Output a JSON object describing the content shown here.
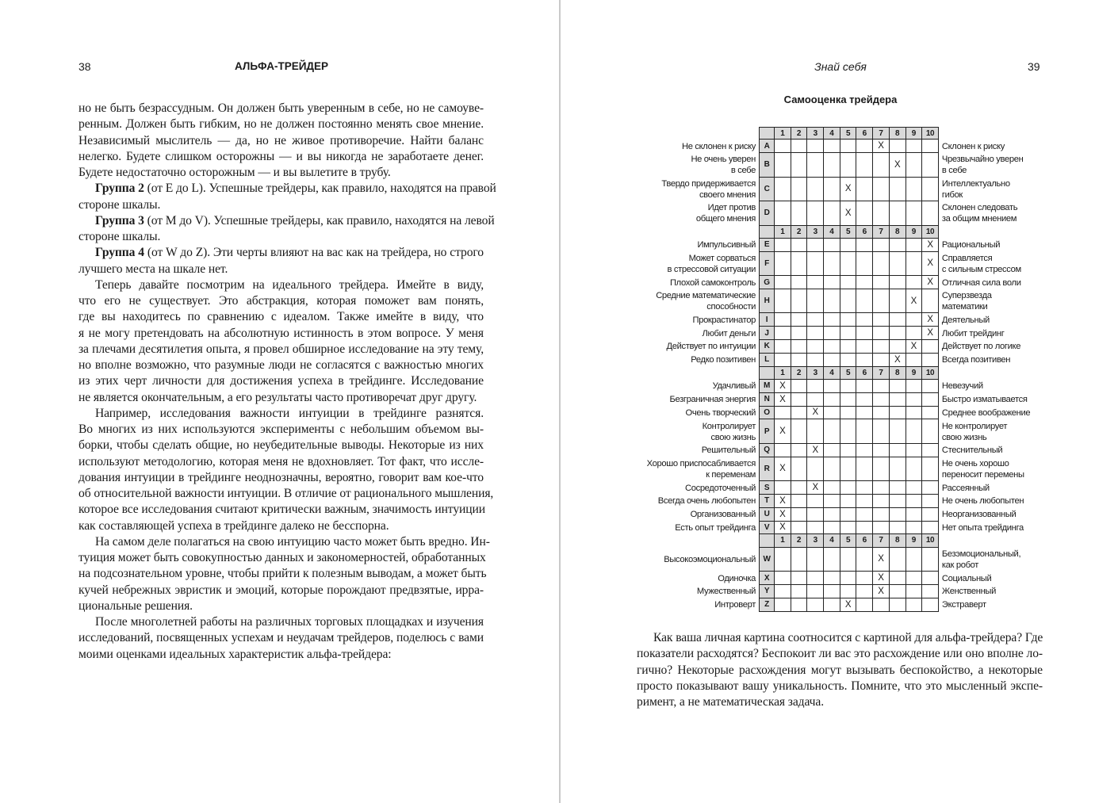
{
  "left_page": {
    "page_number": "38",
    "running_head": "АЛЬФА-ТРЕЙДЕР",
    "paragraphs": [
      {
        "indent": false,
        "lines": [
          "но не быть безрассудным. Он должен быть уверенным в себе, но не самоуве-",
          "ренным. Должен быть гибким, но не должен постоянно менять свое мнение.",
          "Независимый мыслитель — да, но не живое противоречие. Найти баланс",
          "нелегко. Будете слишком осторожны — и вы никогда не заработаете денег.",
          "Будете недостаточно осторожным — и вы вылетите в трубу."
        ]
      },
      {
        "indent": true,
        "bold_lead": "Группа 2",
        "lines": [
          " (от E до L). Успешные трейдеры, как правило, находятся на правой",
          "стороне шкалы."
        ]
      },
      {
        "indent": true,
        "bold_lead": "Группа 3",
        "lines": [
          " (от M до V). Успешные трейдеры, как правило, находятся на левой",
          "стороне шкалы."
        ]
      },
      {
        "indent": true,
        "bold_lead": "Группа 4",
        "lines": [
          " (от W до Z). Эти черты влияют на вас как на трейдера, но строго",
          "лучшего места на шкале нет."
        ]
      },
      {
        "indent": true,
        "lines": [
          "Теперь давайте посмотрим на идеального трейдера. Имейте в виду,",
          "что его не существует. Это абстракция, которая поможет вам понять,",
          "где вы находитесь по сравнению с идеалом. Также имейте в виду, что",
          "я не могу претендовать на абсолютную истинность в этом вопросе. У меня",
          "за плечами десятилетия опыта, я провел обширное исследование на эту тему,",
          "но вполне возможно, что разумные люди не согласятся с важностью многих",
          "из этих черт личности для достижения успеха в трейдинге. Исследование",
          "не является окончательным, а его результаты часто противоречат друг другу."
        ]
      },
      {
        "indent": true,
        "lines": [
          "Например, исследования важности интуиции в трейдинге разнятся.",
          "Во многих из них используются эксперименты с небольшим объемом вы-",
          "борки, чтобы сделать общие, но неубедительные выводы. Некоторые из них",
          "используют методологию, которая меня не вдохновляет. Тот факт, что иссле-",
          "дования интуиции в трейдинге неоднозначны, вероятно, говорит вам кое-что",
          "об относительной важности интуиции. В отличие от рационального мышления,",
          "которое все исследования считают критически важным, значимость интуиции",
          "как составляющей успеха в трейдинге далеко не бесспорна."
        ]
      },
      {
        "indent": true,
        "lines": [
          "На самом деле полагаться на свою интуицию часто может быть вредно. Ин-",
          "туиция может быть совокупностью данных и закономерностей, обработанных",
          "на подсознательном уровне, чтобы прийти к полезным выводам, а может быть",
          "кучей небрежных эвристик и эмоций, которые порождают предвзятые, ирра-",
          "циональные решения."
        ]
      },
      {
        "indent": true,
        "lines": [
          "После многолетней работы на различных торговых площадках и изучения",
          "исследований, посвященных успехам и неудачам трейдеров, поделюсь с вами",
          "моими оценками идеальных характеристик альфа-трейдера:"
        ]
      }
    ]
  },
  "right_page": {
    "page_number": "39",
    "running_head": "Знай себя",
    "table_title": "Самооценка трейдера",
    "scale": [
      "1",
      "2",
      "3",
      "4",
      "5",
      "6",
      "7",
      "8",
      "9",
      "10"
    ],
    "mark": "X",
    "groups": [
      {
        "rows": [
          {
            "letter": "A",
            "left": "Не склонен к риску",
            "right": "Склонен к риску",
            "score": 7
          },
          {
            "letter": "B",
            "left": "Не очень уверен\nв себе",
            "right": "Чрезвычайно уверен\nв себе",
            "score": 8
          },
          {
            "letter": "C",
            "left": "Твердо придерживается\nсвоего мнения",
            "right": "Интеллектуально\nгибок",
            "score": 5
          },
          {
            "letter": "D",
            "left": "Идет против\nобщего мнения",
            "right": "Склонен следовать\nза общим мнением",
            "score": 5
          }
        ]
      },
      {
        "rows": [
          {
            "letter": "E",
            "left": "Импульсивный",
            "right": "Рациональный",
            "score": 10
          },
          {
            "letter": "F",
            "left": "Может сорваться\nв стрессовой ситуации",
            "right": "Справляется\nс сильным стрессом",
            "score": 10
          },
          {
            "letter": "G",
            "left": "Плохой самоконтроль",
            "right": "Отличная сила воли",
            "score": 10
          },
          {
            "letter": "H",
            "left": "Средние математические\nспособности",
            "right": "Суперзвезда\nматематики",
            "score": 9
          },
          {
            "letter": "I",
            "left": "Прокрастинатор",
            "right": "Деятельный",
            "score": 10
          },
          {
            "letter": "J",
            "left": "Любит деньги",
            "right": "Любит трейдинг",
            "score": 10
          },
          {
            "letter": "K",
            "left": "Действует по интуиции",
            "right": "Действует по логике",
            "score": 9
          },
          {
            "letter": "L",
            "left": "Редко позитивен",
            "right": "Всегда позитивен",
            "score": 8
          }
        ]
      },
      {
        "rows": [
          {
            "letter": "M",
            "left": "Удачливый",
            "right": "Невезучий",
            "score": 1
          },
          {
            "letter": "N",
            "left": "Безграничная энергия",
            "right": "Быстро изматывается",
            "score": 1
          },
          {
            "letter": "O",
            "left": "Очень творческий",
            "right": "Среднее воображение",
            "score": 3
          },
          {
            "letter": "P",
            "left": "Контролирует\nсвою жизнь",
            "right": "Не контролирует\nсвою жизнь",
            "score": 1
          },
          {
            "letter": "Q",
            "left": "Решительный",
            "right": "Стеснительный",
            "score": 3
          },
          {
            "letter": "R",
            "left": "Хорошо приспосабливается\nк переменам",
            "right": "Не очень хорошо\nпереносит перемены",
            "score": 1
          },
          {
            "letter": "S",
            "left": "Сосредоточенный",
            "right": "Рассеянный",
            "score": 3
          },
          {
            "letter": "T",
            "left": "Всегда очень любопытен",
            "right": "Не очень любопытен",
            "score": 1
          },
          {
            "letter": "U",
            "left": "Организованный",
            "right": "Неорганизованный",
            "score": 1
          },
          {
            "letter": "V",
            "left": "Есть опыт трейдинга",
            "right": "Нет опыта трейдинга",
            "score": 1
          }
        ]
      },
      {
        "rows": [
          {
            "letter": "W",
            "left": "Высокоэмоциональный",
            "right": "Безэмоциональный,\nкак робот",
            "score": 7
          },
          {
            "letter": "X",
            "left": "Одиночка",
            "right": "Социальный",
            "score": 7
          },
          {
            "letter": "Y",
            "left": "Мужественный",
            "right": "Женственный",
            "score": 7
          },
          {
            "letter": "Z",
            "left": "Интроверт",
            "right": "Экстраверт",
            "score": 5
          }
        ]
      }
    ],
    "paragraph": {
      "indent": true,
      "lines": [
        "Как ваша личная картина соотносится с картиной для альфа-трейдера? Где",
        "показатели расходятся? Беспокоит ли вас это расхождение или оно вполне ло-",
        "гично? Некоторые расхождения могут вызывать беспокойство, а некоторые",
        "просто показывают вашу уникальность. Помните, что это мысленный экспе-",
        "римент, а не математическая задача."
      ]
    }
  }
}
